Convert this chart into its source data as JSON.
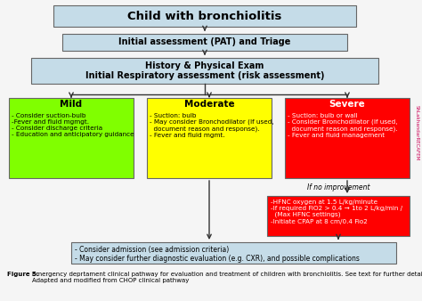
{
  "title": "Child with bronchiolitis",
  "box1": "Initial assessment (PAT) and Triage",
  "box2": "History & Physical Exam\nInitial Respiratory assessment (risk assessment)",
  "mild_title": "Mild",
  "mild_text": "- Consider suction-bulb\n-Fever and fluid mgmgt.\n- Consider discharge criteria\n- Education and anticipatory guidance",
  "moderate_title": "Moderate",
  "moderate_text": "- Suction: bulb\n- May consider Bronchodilator (If used,\n  document reason and response).\n- Fever and fluid mgmt.",
  "severe_title": "Severe",
  "severe_text": "- Suction: bulb or wall\n- Consider Bronchodilator (If used,\n  document reason and response).\n- Fever and fluid management",
  "no_improvement": "If no improvement",
  "hfnc_text": "-HFNC oxygen at 1.5 L/kg/minute\n-If required FiO2 > 0.4 → 1to 2 L/kg/min /\n  (Max HFNC settings)\n-Initiate CPAP at 8 cm/0.4 Fio2",
  "bottom_text": "- Consider admission (see admission criteria)\n- May consider further diagnostic evaluation (e.g. CXR), and possible complications",
  "caption_bold": "Figure 5.",
  "caption_rest": " Emergency deprtament clinical pathway for evaluation and treatment of children with bronchiolitis. See text for further details.\nAdapted and modified from CHOP clinical pathway",
  "watermark": "ShLakhandarRECAFEM",
  "color_top": "#c5dce8",
  "color_mild": "#80ff00",
  "color_moderate": "#ffff00",
  "color_severe": "#ff0000",
  "color_hfnc": "#ff0000",
  "color_bottom": "#c5dce8",
  "color_bg": "#f5f5f5",
  "border_color": "#666666",
  "arrow_color": "#333333",
  "watermark_color": "#cc0055"
}
